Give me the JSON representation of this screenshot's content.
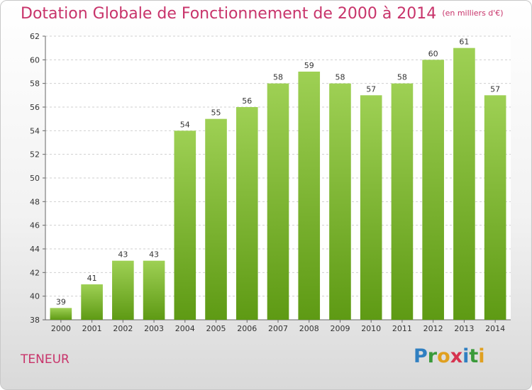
{
  "header": {
    "title": "Dotation Globale de Fonctionnement de 2000 à 2014",
    "subtitle": "(en milliers d'€)"
  },
  "footer": {
    "commune": "TENEUR",
    "logo": {
      "letters": [
        "P",
        "r",
        "o",
        "x",
        "i",
        "t",
        "i"
      ],
      "colors": [
        "#2f7fc1",
        "#3a9a3a",
        "#e0a020",
        "#d6334f",
        "#2f7fc1",
        "#3a9a3a",
        "#e0a020"
      ]
    }
  },
  "chart_data": {
    "type": "bar",
    "categories": [
      "2000",
      "2001",
      "2002",
      "2003",
      "2004",
      "2005",
      "2006",
      "2007",
      "2008",
      "2009",
      "2010",
      "2011",
      "2012",
      "2013",
      "2014"
    ],
    "values": [
      39,
      41,
      43,
      43,
      54,
      55,
      56,
      58,
      59,
      58,
      57,
      58,
      60,
      61,
      57
    ],
    "ylim": [
      38,
      62
    ],
    "yticks": [
      38,
      40,
      42,
      44,
      46,
      48,
      50,
      52,
      54,
      56,
      58,
      60,
      62
    ],
    "grid": true,
    "bar_color_top": "#9ed054",
    "bar_color_bottom": "#5e9a14",
    "text_color": "#333333"
  }
}
